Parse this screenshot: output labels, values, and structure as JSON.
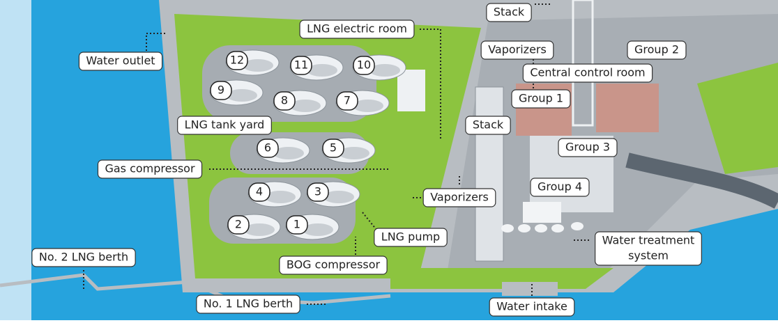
{
  "labels": {
    "stack_top": "Stack",
    "lng_electric_room": "LNG electric room",
    "vaporizers_top": "Vaporizers",
    "group_2": "Group 2",
    "water_outlet": "Water outlet",
    "central_control_room": "Central control room",
    "group_1": "Group 1",
    "stack_middle": "Stack",
    "lng_tank_yard": "LNG tank yard",
    "group_3": "Group 3",
    "gas_compressor": "Gas compressor",
    "group_4": "Group 4",
    "vaporizers_lower": "Vaporizers",
    "lng_pump": "LNG pump",
    "water_treatment_system": [
      "Water treatment",
      "system"
    ],
    "no2_lng_berth": "No. 2 LNG berth",
    "bog_compressor": "BOG compressor",
    "no1_lng_berth": "No. 1 LNG berth",
    "water_intake": "Water intake"
  },
  "tanks": [
    "1",
    "2",
    "3",
    "4",
    "5",
    "6",
    "7",
    "8",
    "9",
    "10",
    "11",
    "12"
  ]
}
